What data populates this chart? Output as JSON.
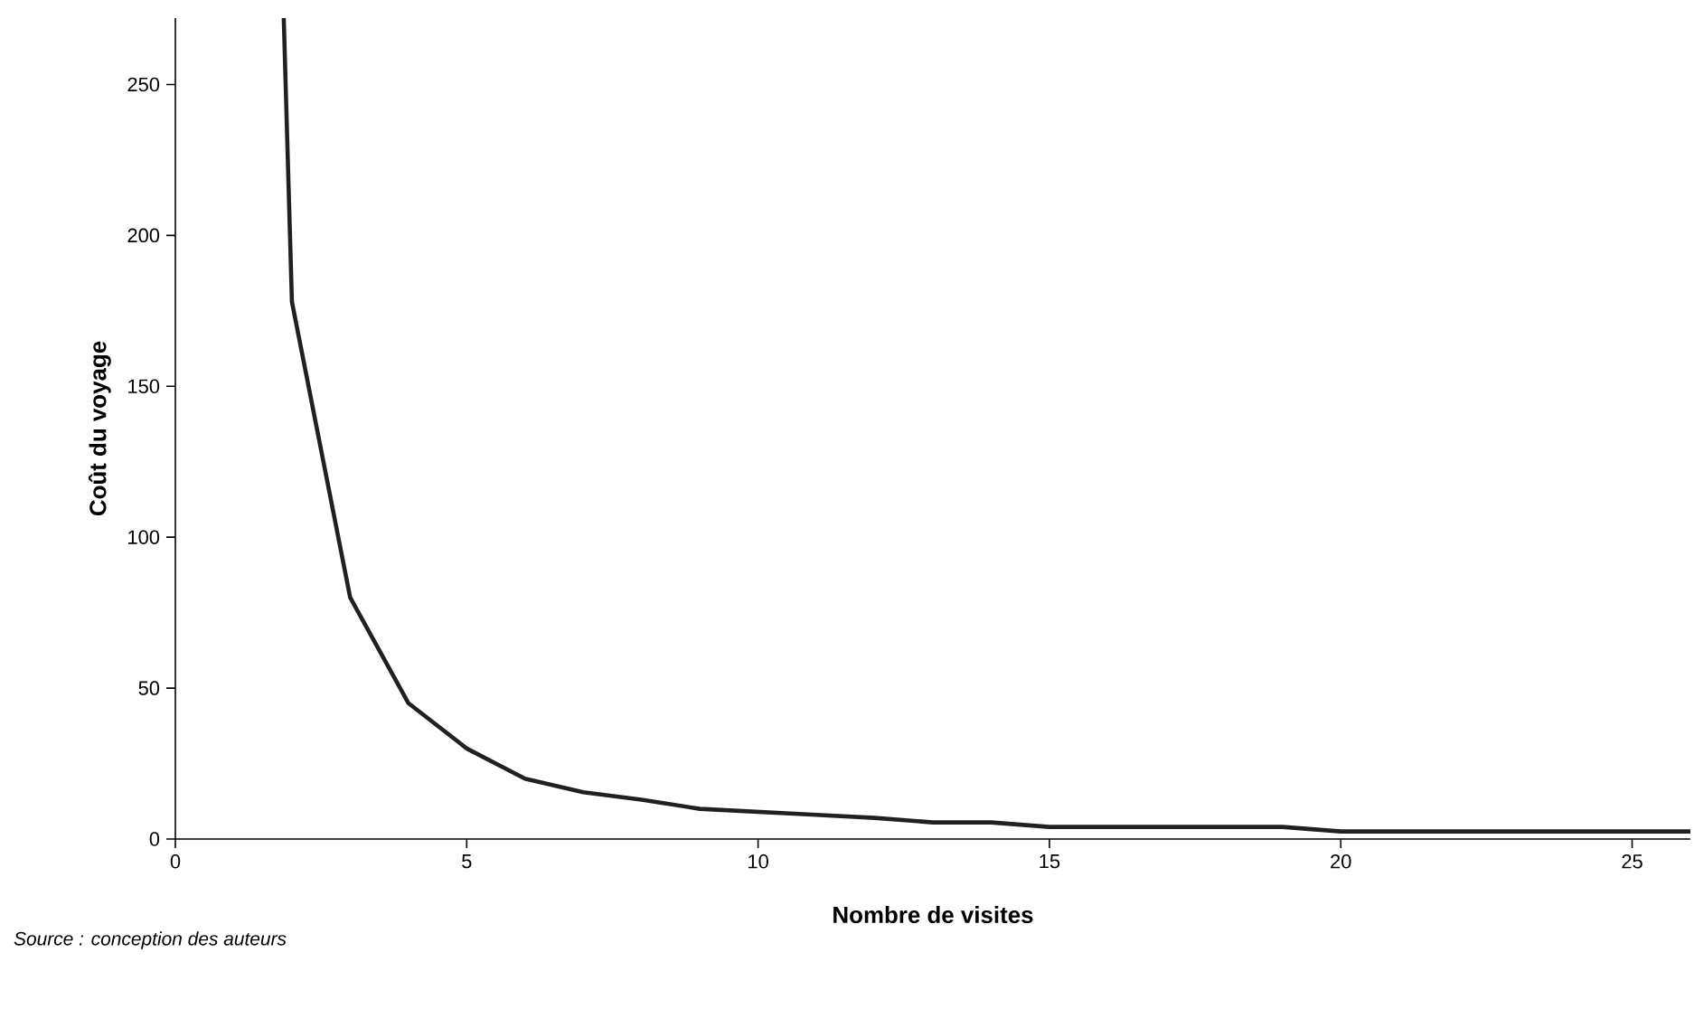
{
  "chart_data": {
    "type": "line",
    "xlabel": "Nombre de visites",
    "ylabel": "Coût du voyage",
    "annotations": [
      "Source : conception des auteurs"
    ],
    "series": [
      {
        "color": "#231f20",
        "x": [
          1.86,
          2,
          3,
          4,
          5,
          6,
          7,
          8,
          9,
          10,
          11,
          12,
          13,
          14,
          15,
          16,
          17,
          18,
          19,
          20,
          21,
          22,
          23,
          24,
          25,
          26
        ],
        "values": [
          272,
          178,
          80,
          45,
          30,
          20,
          15.5,
          13,
          10,
          9,
          8,
          7,
          5.5,
          5.5,
          4,
          4,
          4,
          4,
          4,
          2.5,
          2.5,
          2.5,
          2.5,
          2.5,
          2.5,
          2.5
        ]
      }
    ],
    "xlim": [
      0,
      26
    ],
    "ylim": [
      0,
      272
    ],
    "xticks": [
      0,
      5,
      10,
      15,
      20,
      25
    ],
    "yticks": [
      0,
      50,
      100,
      150,
      200,
      250
    ],
    "marker": "none",
    "line_style": "solid"
  }
}
